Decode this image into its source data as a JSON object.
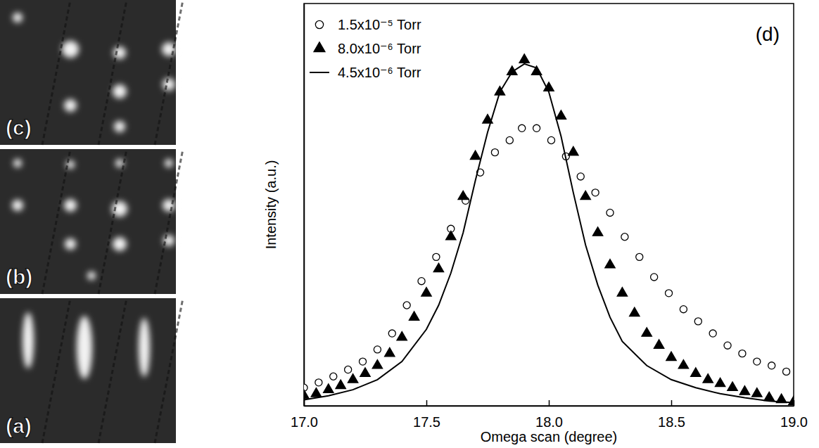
{
  "images": {
    "labels": [
      "(c)",
      "(b)",
      "(a)"
    ]
  },
  "chart_data": {
    "type": "line",
    "title": "(d)",
    "x_label": "Omega scan (degree)",
    "y_label": "Intensity (a.u.)",
    "xlim": [
      17.0,
      19.0
    ],
    "xticks": [
      {
        "value": 17.0,
        "label": "17.0"
      },
      {
        "value": 17.5,
        "label": "17.5"
      },
      {
        "value": 18.0,
        "label": "18.0"
      },
      {
        "value": 18.5,
        "label": "18.5"
      },
      {
        "value": 19.0,
        "label": "19.0"
      }
    ],
    "ylim": [
      0,
      1
    ],
    "tick_labels": "x",
    "legend": "upper left",
    "series": [
      {
        "name": "1.5x10⁻⁵ Torr",
        "type": "scatter",
        "marker": "circle",
        "color": "#000000",
        "x": [
          17.0,
          17.06,
          17.12,
          17.18,
          17.24,
          17.3,
          17.36,
          17.42,
          17.48,
          17.54,
          17.6,
          17.66,
          17.72,
          17.78,
          17.84,
          17.89,
          17.95,
          18.01,
          18.07,
          18.13,
          18.19,
          18.25,
          18.31,
          18.37,
          18.43,
          18.49,
          18.55,
          18.61,
          18.67,
          18.73,
          18.79,
          18.85,
          18.91,
          18.97
        ],
        "values": [
          0.045,
          0.058,
          0.073,
          0.09,
          0.11,
          0.14,
          0.18,
          0.25,
          0.31,
          0.37,
          0.44,
          0.51,
          0.58,
          0.63,
          0.66,
          0.69,
          0.69,
          0.66,
          0.62,
          0.57,
          0.53,
          0.48,
          0.42,
          0.37,
          0.32,
          0.28,
          0.24,
          0.21,
          0.18,
          0.15,
          0.13,
          0.11,
          0.1,
          0.085
        ]
      },
      {
        "name": "8.0x10⁻⁶ Torr",
        "type": "scatter",
        "marker": "triangle",
        "color": "#000000",
        "x": [
          17.0,
          17.05,
          17.1,
          17.15,
          17.2,
          17.25,
          17.3,
          17.35,
          17.4,
          17.45,
          17.5,
          17.55,
          17.6,
          17.65,
          17.7,
          17.75,
          17.8,
          17.85,
          17.9,
          17.95,
          18.0,
          18.05,
          18.1,
          18.15,
          18.2,
          18.25,
          18.3,
          18.35,
          18.4,
          18.45,
          18.5,
          18.55,
          18.6,
          18.65,
          18.7,
          18.75,
          18.8,
          18.85,
          18.9,
          18.95,
          19.0
        ],
        "values": [
          0.025,
          0.03,
          0.04,
          0.05,
          0.065,
          0.08,
          0.1,
          0.13,
          0.17,
          0.22,
          0.28,
          0.34,
          0.42,
          0.52,
          0.62,
          0.71,
          0.78,
          0.83,
          0.86,
          0.83,
          0.79,
          0.72,
          0.63,
          0.52,
          0.43,
          0.35,
          0.28,
          0.23,
          0.18,
          0.15,
          0.12,
          0.1,
          0.08,
          0.065,
          0.055,
          0.045,
          0.035,
          0.03,
          0.02,
          0.015,
          0.01
        ]
      },
      {
        "name": "4.5x10⁻⁶ Torr",
        "type": "line",
        "line_style": "solid",
        "color": "#000000",
        "x": [
          17.0,
          17.1,
          17.2,
          17.3,
          17.4,
          17.5,
          17.55,
          17.6,
          17.65,
          17.7,
          17.75,
          17.8,
          17.85,
          17.9,
          17.95,
          18.0,
          18.05,
          18.1,
          18.15,
          18.2,
          18.25,
          18.3,
          18.4,
          18.5,
          18.6,
          18.7,
          18.8,
          18.9,
          19.0
        ],
        "values": [
          0.015,
          0.025,
          0.04,
          0.065,
          0.11,
          0.19,
          0.25,
          0.33,
          0.43,
          0.56,
          0.68,
          0.78,
          0.83,
          0.85,
          0.84,
          0.78,
          0.67,
          0.53,
          0.4,
          0.3,
          0.22,
          0.16,
          0.1,
          0.065,
          0.045,
          0.03,
          0.02,
          0.012,
          0.008
        ]
      }
    ]
  }
}
